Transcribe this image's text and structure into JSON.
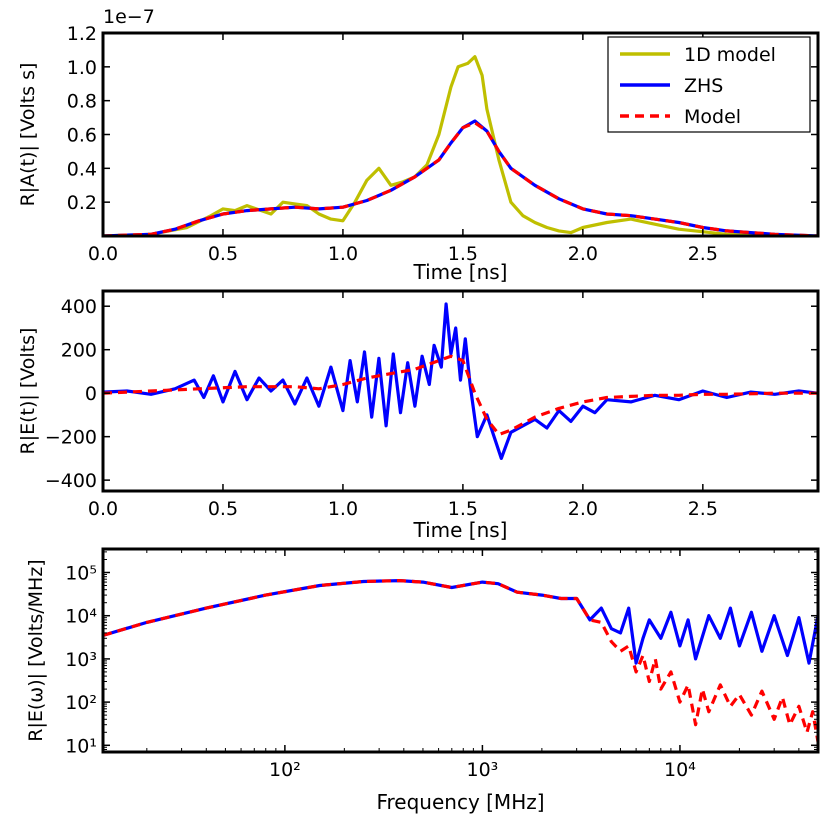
{
  "chart_data": [
    {
      "type": "line",
      "xlabel": "Time [ns]",
      "ylabel": "R|A(t)| [Volts s]",
      "xlim": [
        0.0,
        2.98
      ],
      "ylim": [
        0.0,
        1.2
      ],
      "scale_label": "1e−7",
      "x_ticks": [
        "0.0",
        "0.5",
        "1.0",
        "1.5",
        "2.0",
        "2.5"
      ],
      "x_tick_values": [
        0.0,
        0.5,
        1.0,
        1.5,
        2.0,
        2.5
      ],
      "y_ticks": [
        "0.2",
        "0.4",
        "0.6",
        "0.8",
        "1.0",
        "1.2"
      ],
      "y_tick_values": [
        0.2,
        0.4,
        0.6,
        0.8,
        1.0,
        1.2
      ],
      "legend": {
        "placement": "top-right",
        "entries": [
          {
            "label": "1D model",
            "color": "#bfbf00",
            "style": "solid"
          },
          {
            "label": "ZHS",
            "color": "#0000ff",
            "style": "solid"
          },
          {
            "label": "Model",
            "color": "#ff0000",
            "style": "dashed"
          }
        ]
      },
      "series": [
        {
          "name": "1D model",
          "color": "#bfbf00",
          "style": "solid",
          "x": [
            0.0,
            0.2,
            0.35,
            0.45,
            0.5,
            0.55,
            0.6,
            0.7,
            0.75,
            0.8,
            0.85,
            0.9,
            0.95,
            1.0,
            1.05,
            1.1,
            1.15,
            1.2,
            1.25,
            1.3,
            1.35,
            1.4,
            1.45,
            1.48,
            1.52,
            1.55,
            1.58,
            1.6,
            1.65,
            1.7,
            1.75,
            1.8,
            1.85,
            1.9,
            1.95,
            2.0,
            2.1,
            2.2,
            2.3,
            2.4,
            2.6,
            2.8,
            2.98
          ],
          "y": [
            0.0,
            0.01,
            0.05,
            0.12,
            0.16,
            0.15,
            0.18,
            0.13,
            0.2,
            0.19,
            0.18,
            0.13,
            0.1,
            0.09,
            0.2,
            0.33,
            0.4,
            0.3,
            0.32,
            0.35,
            0.42,
            0.6,
            0.88,
            1.0,
            1.02,
            1.06,
            0.95,
            0.75,
            0.45,
            0.2,
            0.12,
            0.08,
            0.05,
            0.03,
            0.02,
            0.05,
            0.08,
            0.1,
            0.07,
            0.04,
            0.01,
            0.0,
            0.0
          ]
        },
        {
          "name": "ZHS",
          "color": "#0000ff",
          "style": "solid",
          "x": [
            0.0,
            0.2,
            0.3,
            0.4,
            0.5,
            0.6,
            0.7,
            0.8,
            0.9,
            1.0,
            1.1,
            1.2,
            1.3,
            1.4,
            1.45,
            1.5,
            1.55,
            1.6,
            1.65,
            1.7,
            1.8,
            1.9,
            2.0,
            2.1,
            2.2,
            2.3,
            2.4,
            2.5,
            2.6,
            2.7,
            2.8,
            2.98
          ],
          "y": [
            0.0,
            0.01,
            0.04,
            0.09,
            0.13,
            0.15,
            0.16,
            0.17,
            0.16,
            0.17,
            0.21,
            0.27,
            0.35,
            0.45,
            0.55,
            0.64,
            0.68,
            0.62,
            0.5,
            0.4,
            0.3,
            0.22,
            0.16,
            0.13,
            0.12,
            0.1,
            0.08,
            0.05,
            0.03,
            0.02,
            0.01,
            0.0
          ]
        },
        {
          "name": "Model",
          "color": "#ff0000",
          "style": "dashed",
          "x": [
            0.0,
            0.2,
            0.3,
            0.4,
            0.5,
            0.6,
            0.7,
            0.8,
            0.9,
            1.0,
            1.1,
            1.2,
            1.3,
            1.4,
            1.45,
            1.5,
            1.55,
            1.6,
            1.65,
            1.7,
            1.8,
            1.9,
            2.0,
            2.1,
            2.2,
            2.3,
            2.4,
            2.5,
            2.6,
            2.7,
            2.8,
            2.98
          ],
          "y": [
            0.0,
            0.01,
            0.04,
            0.09,
            0.13,
            0.15,
            0.16,
            0.17,
            0.16,
            0.17,
            0.21,
            0.27,
            0.35,
            0.45,
            0.55,
            0.64,
            0.67,
            0.62,
            0.5,
            0.4,
            0.3,
            0.22,
            0.16,
            0.13,
            0.12,
            0.1,
            0.08,
            0.05,
            0.03,
            0.02,
            0.01,
            0.0
          ]
        }
      ]
    },
    {
      "type": "line",
      "xlabel": "Time [ns]",
      "ylabel": "R|E(t)| [Volts]",
      "xlim": [
        0.0,
        2.98
      ],
      "ylim": [
        -450,
        470
      ],
      "x_ticks": [
        "0.0",
        "0.5",
        "1.0",
        "1.5",
        "2.0",
        "2.5"
      ],
      "x_tick_values": [
        0.0,
        0.5,
        1.0,
        1.5,
        2.0,
        2.5
      ],
      "y_ticks": [
        "−400",
        "−200",
        "0",
        "200",
        "400"
      ],
      "y_tick_values": [
        -400,
        -200,
        0,
        200,
        400
      ],
      "series": [
        {
          "name": "ZHS",
          "color": "#0000ff",
          "style": "solid",
          "x": [
            0.0,
            0.1,
            0.2,
            0.3,
            0.38,
            0.42,
            0.46,
            0.5,
            0.55,
            0.6,
            0.65,
            0.7,
            0.75,
            0.8,
            0.85,
            0.9,
            0.95,
            1.0,
            1.03,
            1.06,
            1.09,
            1.12,
            1.15,
            1.18,
            1.21,
            1.24,
            1.27,
            1.3,
            1.33,
            1.36,
            1.38,
            1.41,
            1.43,
            1.45,
            1.47,
            1.49,
            1.51,
            1.53,
            1.56,
            1.6,
            1.63,
            1.66,
            1.7,
            1.75,
            1.8,
            1.85,
            1.9,
            1.95,
            2.0,
            2.05,
            2.1,
            2.2,
            2.3,
            2.4,
            2.5,
            2.6,
            2.7,
            2.8,
            2.9,
            2.98
          ],
          "y": [
            5,
            10,
            -5,
            20,
            60,
            -20,
            80,
            -40,
            100,
            -30,
            70,
            10,
            60,
            -50,
            70,
            -60,
            120,
            -80,
            150,
            -40,
            190,
            -110,
            160,
            -150,
            180,
            -90,
            140,
            -60,
            170,
            40,
            220,
            120,
            410,
            180,
            300,
            60,
            250,
            40,
            -200,
            -100,
            -200,
            -300,
            -180,
            -150,
            -120,
            -160,
            -80,
            -130,
            -60,
            -90,
            -30,
            -40,
            -10,
            -30,
            10,
            -20,
            5,
            -5,
            10,
            0
          ]
        },
        {
          "name": "Model",
          "color": "#ff0000",
          "style": "dashed",
          "x": [
            0.0,
            0.2,
            0.4,
            0.6,
            0.8,
            0.9,
            1.0,
            1.1,
            1.2,
            1.3,
            1.35,
            1.4,
            1.45,
            1.5,
            1.55,
            1.6,
            1.65,
            1.7,
            1.8,
            1.9,
            2.0,
            2.1,
            2.2,
            2.3,
            2.4,
            2.5,
            2.6,
            2.8,
            2.98
          ],
          "y": [
            0,
            10,
            20,
            30,
            30,
            20,
            40,
            70,
            90,
            110,
            130,
            150,
            170,
            150,
            0,
            -120,
            -190,
            -170,
            -110,
            -70,
            -40,
            -20,
            -15,
            -10,
            -10,
            -5,
            -5,
            0,
            0
          ]
        }
      ]
    },
    {
      "type": "line",
      "xlabel": "Frequency [MHz]",
      "ylabel": "R|E(ω)| [Volts/MHz]",
      "xscale": "log",
      "yscale": "log",
      "xlim": [
        12,
        50000
      ],
      "ylim": [
        7,
        350000
      ],
      "x_ticks": [
        "10²",
        "10³",
        "10⁴"
      ],
      "x_tick_values": [
        100,
        1000,
        10000
      ],
      "y_ticks": [
        "10¹",
        "10²",
        "10³",
        "10⁴",
        "10⁵"
      ],
      "y_tick_values": [
        10,
        100,
        1000,
        10000,
        100000
      ],
      "series": [
        {
          "name": "ZHS",
          "color": "#0000ff",
          "style": "solid",
          "x": [
            12,
            20,
            40,
            80,
            150,
            250,
            380,
            500,
            700,
            1000,
            1200,
            1500,
            2000,
            2500,
            3000,
            3500,
            4000,
            4500,
            5000,
            5500,
            6000,
            6500,
            7000,
            8000,
            9000,
            10000,
            11000,
            12000,
            14000,
            16000,
            18000,
            20000,
            23000,
            26000,
            30000,
            35000,
            40000,
            45000,
            50000
          ],
          "y": [
            3500,
            7000,
            15000,
            30000,
            50000,
            62000,
            65000,
            60000,
            45000,
            60000,
            55000,
            35000,
            30000,
            25000,
            25000,
            8000,
            15000,
            5000,
            4000,
            15000,
            800,
            3000,
            8000,
            3000,
            12000,
            2000,
            8000,
            1000,
            10000,
            3000,
            15000,
            2000,
            12000,
            1500,
            10000,
            1200,
            9000,
            800,
            10000
          ]
        },
        {
          "name": "Model",
          "color": "#ff0000",
          "style": "dashed",
          "x": [
            12,
            20,
            40,
            80,
            150,
            250,
            380,
            500,
            700,
            1000,
            1200,
            1500,
            2000,
            2500,
            3000,
            3500,
            4000,
            4500,
            5000,
            5500,
            6000,
            6500,
            7000,
            7500,
            8000,
            9000,
            10000,
            11000,
            12000,
            13000,
            14000,
            16000,
            18000,
            20000,
            23000,
            26000,
            30000,
            33000,
            36000,
            40000,
            44000,
            47000,
            50000
          ],
          "y": [
            3500,
            7000,
            15000,
            30000,
            50000,
            62000,
            65000,
            60000,
            45000,
            60000,
            55000,
            35000,
            30000,
            25000,
            25000,
            8000,
            7000,
            2500,
            1500,
            2000,
            500,
            1200,
            300,
            1000,
            200,
            500,
            100,
            250,
            30,
            200,
            60,
            250,
            80,
            150,
            50,
            180,
            40,
            130,
            30,
            80,
            20,
            60,
            12
          ]
        }
      ]
    }
  ]
}
